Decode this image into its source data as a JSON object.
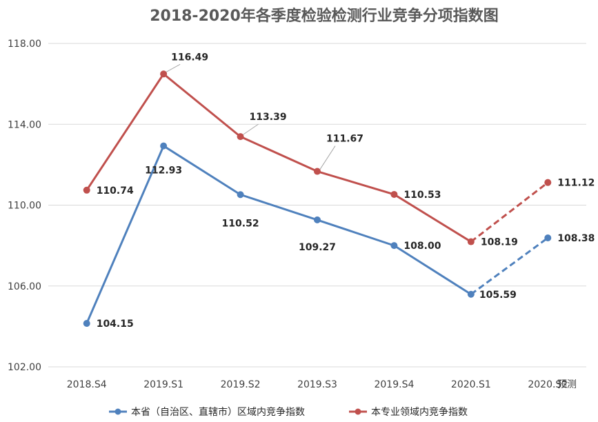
{
  "chart_data": {
    "type": "line",
    "title": "2018-2020年各季度检验检测行业竞争分项指数图",
    "categories": [
      "2018.S4",
      "2019.S1",
      "2019.S2",
      "2019.S3",
      "2019.S4",
      "2020.S1",
      "2020.S2"
    ],
    "forecast_label": "预测",
    "forecast_from_index": 5,
    "ylim": [
      102,
      118
    ],
    "yticks": [
      "102.00",
      "106.00",
      "110.00",
      "114.00",
      "118.00"
    ],
    "grid": true,
    "legend_position": "bottom",
    "series": [
      {
        "name": "本省（自治区、直辖市）区域内竞争指数",
        "color": "#4f81bd",
        "values": [
          104.15,
          112.93,
          110.52,
          109.27,
          108.0,
          105.59,
          108.38
        ],
        "labels": [
          "104.15",
          "112.93",
          "110.52",
          "109.27",
          "108.00",
          "105.59",
          "108.38"
        ]
      },
      {
        "name": "本专业领域内竞争指数",
        "color": "#c0504d",
        "values": [
          110.74,
          116.49,
          113.39,
          111.67,
          110.53,
          108.19,
          111.12
        ],
        "labels": [
          "110.74",
          "116.49",
          "113.39",
          "111.67",
          "110.53",
          "108.19",
          "111.12"
        ]
      }
    ]
  }
}
